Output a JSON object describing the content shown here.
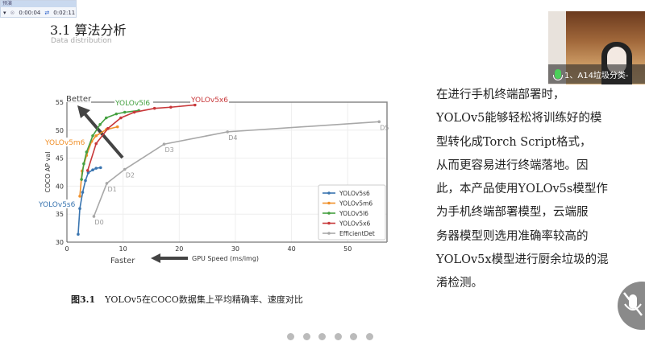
{
  "player": {
    "header": "预演",
    "elapsed": "0:00:04",
    "total": "0:02:11"
  },
  "slide": {
    "title": "3.1 算法分析",
    "subtitle": "Data distribution",
    "paragraph_lines": [
      "在进行手机终端部署时，",
      "YOLOv5能够轻松将训练好的模",
      "型转化成Torch Script格式，",
      "从而更容易进行终端落地。因",
      "此，本产品使用YOLOv5s模型作",
      "为手机终端部署模型，云端服",
      "务器模型则选用准确率较高的",
      "YOLOv5x模型进行厨余垃圾的混",
      "淆检测。"
    ],
    "caption_label": "图3.1",
    "caption_text": "YOLOv5在COCO数据集上平均精确率、速度对比",
    "page_dots": 6
  },
  "webcam": {
    "caption": "1、A14垃圾分类-",
    "mic_icon": "microphone-icon"
  },
  "mute_button": {
    "icon": "microphone-muted-icon"
  },
  "chart_data": {
    "type": "line",
    "xlabel": "GPU Speed (ms/img)",
    "ylabel": "COCO AP val",
    "xlim": [
      0,
      57
    ],
    "ylim": [
      30,
      55
    ],
    "xticks": [
      0,
      10,
      20,
      30,
      40,
      50
    ],
    "yticks": [
      30,
      35,
      40,
      45,
      50,
      55
    ],
    "grid": true,
    "legend": "bottom-right",
    "annotations": {
      "better": "Better",
      "faster": "Faster"
    },
    "series": [
      {
        "name": "YOLOv5s6",
        "color": "#3a75b0",
        "x": [
          2,
          2.3,
          2.8,
          3.3,
          3.8,
          4.6,
          5.2,
          6
        ],
        "y": [
          31.4,
          36,
          38.9,
          41,
          42.4,
          42.9,
          43.2,
          43.3
        ]
      },
      {
        "name": "YOLOv5m6",
        "color": "#f0902a",
        "x": [
          2.3,
          2.7,
          3.5,
          4.4,
          5.2,
          7,
          9
        ],
        "y": [
          38.2,
          42.7,
          45.5,
          48,
          49,
          50.1,
          50.6
        ]
      },
      {
        "name": "YOLOv5l6",
        "color": "#45a040",
        "x": [
          2.6,
          3,
          3.5,
          4.6,
          5.9,
          7,
          8.8,
          10.3,
          12.8
        ],
        "y": [
          41.2,
          44,
          46.1,
          49,
          51,
          52.2,
          52.9,
          53.2,
          53.5
        ]
      },
      {
        "name": "YOLOv5x6",
        "color": "#c8383a",
        "x": [
          3.7,
          5.2,
          7.3,
          9.6,
          12,
          15.6,
          18.5,
          22.8
        ],
        "y": [
          42.8,
          47.6,
          50.3,
          52.2,
          53.2,
          53.9,
          54.1,
          54.5
        ]
      },
      {
        "name": "EfficientDet",
        "color": "#a8a8a8",
        "x": [
          4.8,
          7.1,
          10.3,
          17.3,
          28.6,
          55.6
        ],
        "y": [
          34.6,
          40.5,
          43,
          47.5,
          49.7,
          51.5
        ],
        "point_labels": [
          "D0",
          "D1",
          "D2",
          "D3",
          "D4",
          "D5"
        ]
      }
    ]
  }
}
